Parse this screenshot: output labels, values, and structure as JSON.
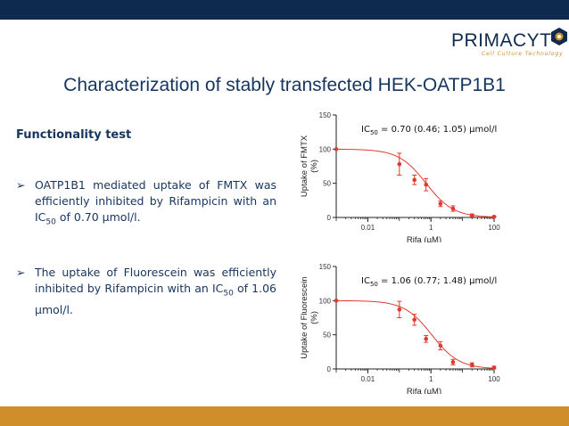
{
  "brand": {
    "name": "PRIMACYT",
    "tagline": "Cell Culture Technology",
    "colors": {
      "navy": "#0e2a4f",
      "gold": "#cf8e2a"
    }
  },
  "slide": {
    "title": "Characterization of stably transfected HEK-OATP1B1",
    "subheading": "Functionality test",
    "bullets": [
      {
        "pre": "OATP1B1 mediated uptake of FMTX was efficiently inhibited by Rifampicin with an IC",
        "sub": "50",
        "post": " of 0.70 µmol/l."
      },
      {
        "pre": "The uptake of Fluorescein was efficiently inhibited by Rifampicin with an IC",
        "sub": "50",
        "post": " of 1.06 µmol/l."
      }
    ]
  },
  "chart_data": [
    {
      "type": "scatter",
      "ylabel": "Uptake of FMTX (%)",
      "ylabel_lines": [
        "Uptake of FMTX",
        "(%)"
      ],
      "xlabel": "Rifa (µM)",
      "xscale": "log",
      "xlim": [
        0.001,
        100
      ],
      "ylim": [
        0,
        150
      ],
      "xticks": [
        0.01,
        1,
        100
      ],
      "xtick_labels": [
        "0.01",
        "1",
        "100"
      ],
      "yticks": [
        0,
        50,
        100,
        150
      ],
      "ytick_labels": [
        "0",
        "50",
        "100",
        "150"
      ],
      "annotation": {
        "pre": "IC",
        "sub": "50",
        "post": " = 0.70 (0.46; 1.05) µmol/l"
      },
      "fit": {
        "top": 100,
        "bottom": 0,
        "ic50": 0.7,
        "hill": 1.0
      },
      "marker_color": "#e03a2f",
      "points": [
        {
          "x": 0.001,
          "y": 100,
          "err": 0
        },
        {
          "x": 0.1,
          "y": 78,
          "err": 16
        },
        {
          "x": 0.3,
          "y": 55,
          "err": 7
        },
        {
          "x": 0.7,
          "y": 48,
          "err": 9
        },
        {
          "x": 2,
          "y": 20,
          "err": 4
        },
        {
          "x": 5,
          "y": 13,
          "err": 4
        },
        {
          "x": 20,
          "y": 3,
          "err": 2
        },
        {
          "x": 100,
          "y": 1,
          "err": 1
        }
      ]
    },
    {
      "type": "scatter",
      "ylabel": "Uptake of Fluorescein (%)",
      "ylabel_lines": [
        "Uptake of Fluorescein",
        "(%)"
      ],
      "xlabel": "Rifa (µM)",
      "xscale": "log",
      "xlim": [
        0.001,
        100
      ],
      "ylim": [
        0,
        150
      ],
      "xticks": [
        0.01,
        1,
        100
      ],
      "xtick_labels": [
        "0.01",
        "1",
        "100"
      ],
      "yticks": [
        0,
        50,
        100,
        150
      ],
      "ytick_labels": [
        "0",
        "50",
        "100",
        "150"
      ],
      "annotation": {
        "pre": "IC",
        "sub": "50",
        "post": " = 1.06 (0.77; 1.48) µmol/l"
      },
      "fit": {
        "top": 100,
        "bottom": 0,
        "ic50": 1.06,
        "hill": 1.0
      },
      "marker_color": "#e03a2f",
      "points": [
        {
          "x": 0.001,
          "y": 100,
          "err": 0
        },
        {
          "x": 0.1,
          "y": 87,
          "err": 12
        },
        {
          "x": 0.3,
          "y": 72,
          "err": 8
        },
        {
          "x": 0.7,
          "y": 44,
          "err": 5
        },
        {
          "x": 2,
          "y": 34,
          "err": 6
        },
        {
          "x": 5,
          "y": 10,
          "err": 4
        },
        {
          "x": 20,
          "y": 6,
          "err": 3
        },
        {
          "x": 100,
          "y": 2,
          "err": 2
        }
      ]
    }
  ]
}
